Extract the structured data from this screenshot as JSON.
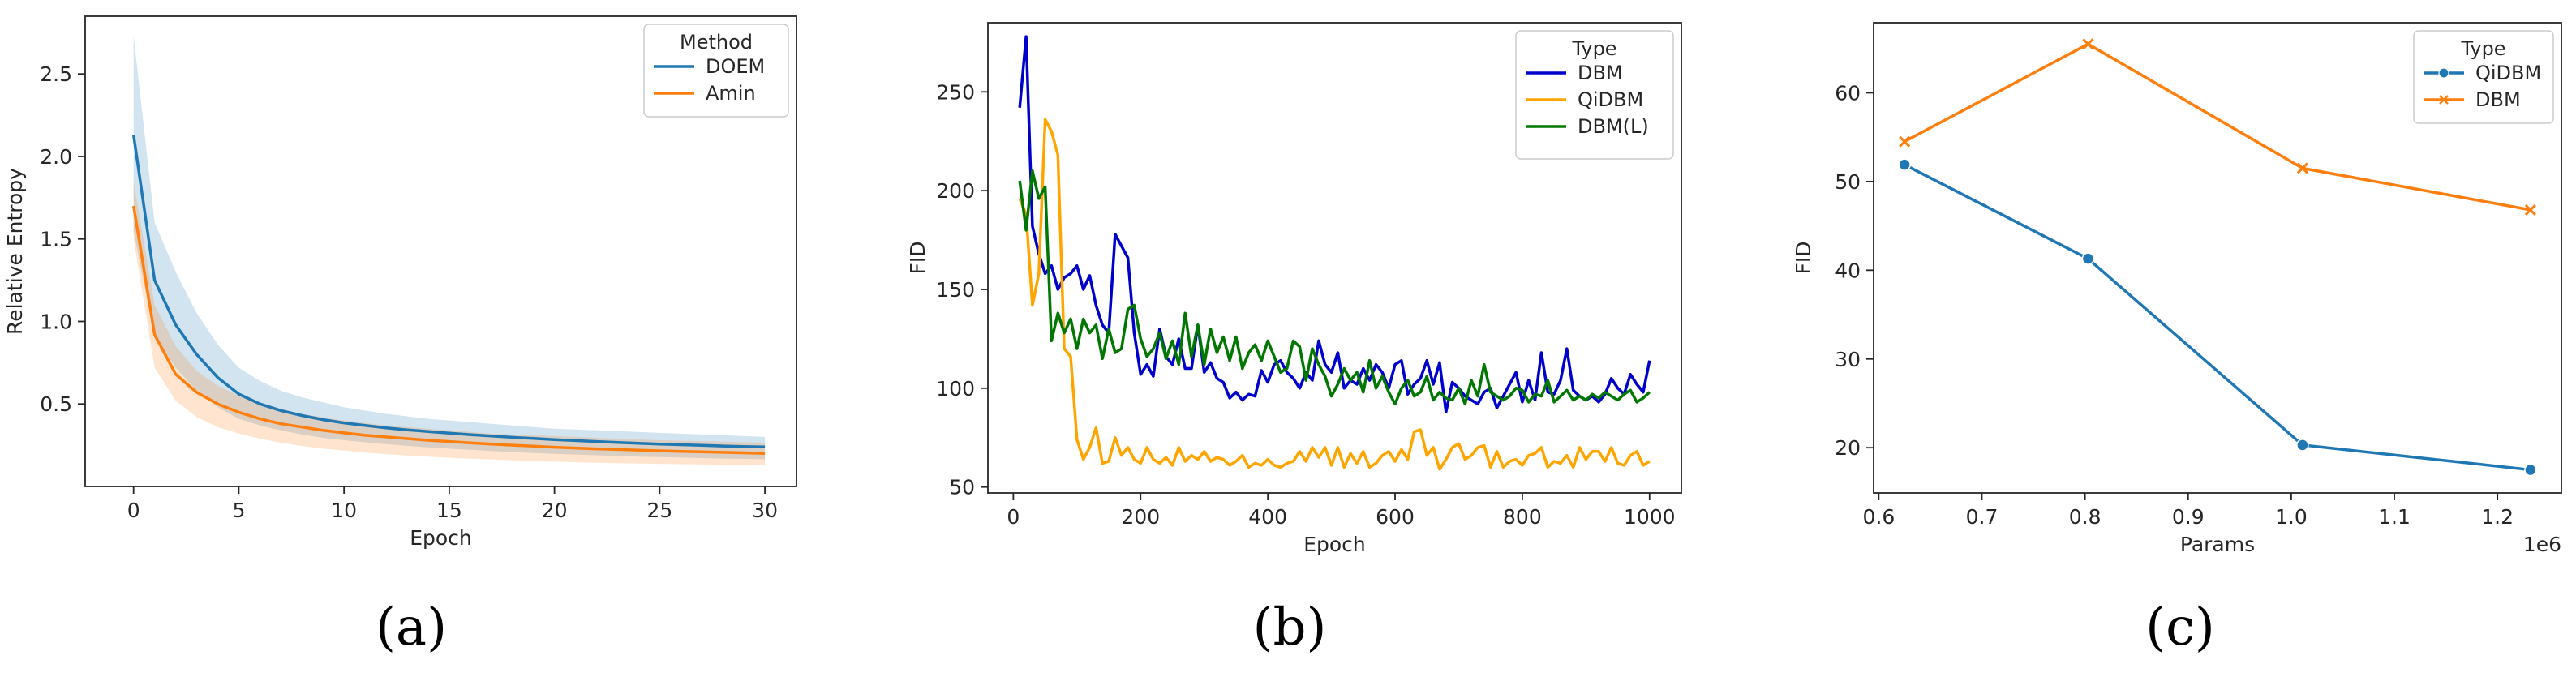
{
  "chart_data": [
    {
      "type": "line",
      "panel_label": "(a)",
      "xlabel": "Epoch",
      "ylabel": "Relative Entropy",
      "xlim": [
        -2.3,
        31.5
      ],
      "ylim": [
        0.0,
        2.85
      ],
      "xticks": [
        0,
        5,
        10,
        15,
        20,
        25,
        30
      ],
      "yticks": [
        0.5,
        1.0,
        1.5,
        2.0,
        2.5
      ],
      "grid": false,
      "legend": {
        "title": "Method",
        "position": "top-right"
      },
      "x": [
        0,
        1,
        2,
        3,
        4,
        5,
        6,
        7,
        8,
        9,
        10,
        11,
        12,
        13,
        14,
        15,
        16,
        17,
        18,
        19,
        20,
        21,
        22,
        23,
        24,
        25,
        26,
        27,
        28,
        29,
        30
      ],
      "series": [
        {
          "name": "DOEM",
          "color": "#1f77b4",
          "values": [
            2.13,
            1.25,
            0.98,
            0.8,
            0.66,
            0.56,
            0.5,
            0.46,
            0.43,
            0.405,
            0.385,
            0.37,
            0.355,
            0.343,
            0.333,
            0.323,
            0.314,
            0.306,
            0.298,
            0.291,
            0.284,
            0.278,
            0.272,
            0.267,
            0.262,
            0.257,
            0.253,
            0.249,
            0.245,
            0.242,
            0.24
          ],
          "band_upper": [
            2.73,
            1.6,
            1.3,
            1.05,
            0.86,
            0.72,
            0.64,
            0.58,
            0.54,
            0.51,
            0.48,
            0.46,
            0.44,
            0.425,
            0.41,
            0.4,
            0.39,
            0.38,
            0.37,
            0.36,
            0.35,
            0.345,
            0.34,
            0.335,
            0.33,
            0.325,
            0.32,
            0.315,
            0.31,
            0.305,
            0.3
          ],
          "band_lower": [
            1.55,
            0.9,
            0.72,
            0.58,
            0.48,
            0.41,
            0.37,
            0.34,
            0.315,
            0.295,
            0.28,
            0.268,
            0.256,
            0.246,
            0.237,
            0.229,
            0.222,
            0.215,
            0.209,
            0.203,
            0.198,
            0.193,
            0.189,
            0.185,
            0.181,
            0.178,
            0.175,
            0.172,
            0.169,
            0.167,
            0.165
          ]
        },
        {
          "name": "Amin",
          "color": "#ff7f0e",
          "values": [
            1.7,
            0.92,
            0.68,
            0.57,
            0.5,
            0.45,
            0.41,
            0.38,
            0.36,
            0.34,
            0.325,
            0.31,
            0.3,
            0.29,
            0.28,
            0.272,
            0.264,
            0.257,
            0.25,
            0.244,
            0.238,
            0.233,
            0.228,
            0.224,
            0.22,
            0.216,
            0.213,
            0.21,
            0.207,
            0.204,
            0.2
          ],
          "band_upper": [
            1.85,
            1.1,
            0.85,
            0.7,
            0.61,
            0.55,
            0.51,
            0.47,
            0.44,
            0.42,
            0.4,
            0.385,
            0.37,
            0.36,
            0.35,
            0.34,
            0.33,
            0.32,
            0.315,
            0.31,
            0.305,
            0.3,
            0.295,
            0.29,
            0.285,
            0.28,
            0.277,
            0.274,
            0.271,
            0.268,
            0.265
          ],
          "band_lower": [
            1.5,
            0.72,
            0.52,
            0.42,
            0.36,
            0.32,
            0.29,
            0.265,
            0.245,
            0.23,
            0.217,
            0.206,
            0.196,
            0.188,
            0.181,
            0.174,
            0.168,
            0.163,
            0.158,
            0.154,
            0.15,
            0.147,
            0.144,
            0.141,
            0.139,
            0.137,
            0.135,
            0.133,
            0.131,
            0.13,
            0.128
          ]
        }
      ]
    },
    {
      "type": "line",
      "panel_label": "(b)",
      "xlabel": "Epoch",
      "ylabel": "FID",
      "xlim": [
        -40,
        1050
      ],
      "ylim": [
        47,
        285
      ],
      "xticks": [
        0,
        200,
        400,
        600,
        800,
        1000
      ],
      "yticks": [
        50,
        100,
        150,
        200,
        250
      ],
      "grid": false,
      "legend": {
        "title": "Type",
        "position": "top-right"
      },
      "x": [
        10,
        20,
        30,
        40,
        50,
        60,
        70,
        80,
        90,
        100,
        110,
        120,
        130,
        140,
        150,
        160,
        170,
        180,
        190,
        200,
        210,
        220,
        230,
        240,
        250,
        260,
        270,
        280,
        290,
        300,
        310,
        320,
        330,
        340,
        350,
        360,
        370,
        380,
        390,
        400,
        410,
        420,
        430,
        440,
        450,
        460,
        470,
        480,
        490,
        500,
        510,
        520,
        530,
        540,
        550,
        560,
        570,
        580,
        590,
        600,
        610,
        620,
        630,
        640,
        650,
        660,
        670,
        680,
        690,
        700,
        710,
        720,
        730,
        740,
        750,
        760,
        770,
        780,
        790,
        800,
        810,
        820,
        830,
        840,
        850,
        860,
        870,
        880,
        890,
        900,
        910,
        920,
        930,
        940,
        950,
        960,
        970,
        980,
        990,
        1000
      ],
      "series": [
        {
          "name": "DBM",
          "color": "#0000cc",
          "values": [
            242,
            278,
            182,
            168,
            158,
            162,
            150,
            156,
            158,
            162,
            150,
            157,
            142,
            132,
            128,
            178,
            172,
            166,
            128,
            107,
            112,
            106,
            130,
            116,
            112,
            125,
            110,
            110,
            132,
            108,
            113,
            105,
            103,
            95,
            98,
            94,
            97,
            96,
            109,
            103,
            112,
            114,
            108,
            105,
            100,
            108,
            104,
            124,
            112,
            108,
            118,
            100,
            104,
            102,
            110,
            104,
            112,
            108,
            100,
            112,
            114,
            97,
            102,
            105,
            114,
            102,
            113,
            88,
            103,
            100,
            96,
            94,
            92,
            98,
            100,
            90,
            96,
            102,
            108,
            93,
            104,
            94,
            118,
            98,
            97,
            104,
            120,
            99,
            96,
            94,
            96,
            93,
            97,
            105,
            100,
            97,
            107,
            102,
            98,
            114
          ]
        },
        {
          "name": "QiDBM",
          "color": "#ffa500",
          "values": [
            196,
            188,
            142,
            158,
            236,
            230,
            218,
            120,
            116,
            74,
            64,
            70,
            80,
            62,
            63,
            75,
            66,
            70,
            64,
            62,
            70,
            64,
            62,
            65,
            61,
            70,
            63,
            66,
            64,
            68,
            63,
            65,
            64,
            61,
            63,
            66,
            60,
            62,
            61,
            64,
            61,
            60,
            62,
            63,
            68,
            63,
            70,
            65,
            70,
            61,
            70,
            60,
            67,
            62,
            68,
            60,
            62,
            66,
            68,
            63,
            69,
            64,
            78,
            79,
            66,
            70,
            59,
            64,
            70,
            72,
            64,
            66,
            70,
            71,
            60,
            68,
            60,
            63,
            64,
            61,
            66,
            67,
            70,
            60,
            63,
            62,
            66,
            60,
            70,
            64,
            68,
            68,
            63,
            70,
            62,
            61,
            66,
            68,
            61,
            63
          ]
        },
        {
          "name": "DBM(L)",
          "color": "#007700",
          "values": [
            205,
            180,
            210,
            196,
            202,
            124,
            138,
            128,
            135,
            120,
            135,
            128,
            132,
            115,
            130,
            118,
            120,
            140,
            142,
            125,
            116,
            120,
            128,
            115,
            124,
            112,
            138,
            116,
            132,
            112,
            130,
            118,
            126,
            114,
            126,
            110,
            118,
            122,
            114,
            124,
            116,
            108,
            110,
            124,
            121,
            104,
            120,
            112,
            106,
            96,
            102,
            110,
            104,
            108,
            98,
            114,
            100,
            106,
            98,
            92,
            100,
            104,
            96,
            98,
            106,
            94,
            98,
            95,
            94,
            100,
            92,
            104,
            96,
            112,
            98,
            96,
            94,
            96,
            100,
            99,
            93,
            97,
            96,
            104,
            93,
            96,
            99,
            94,
            96,
            94,
            97,
            95,
            98,
            96,
            94,
            97,
            99,
            93,
            95,
            98
          ]
        }
      ]
    },
    {
      "type": "line",
      "panel_label": "(c)",
      "xlabel": "Params",
      "ylabel": "FID",
      "x_offset_label": "1e6",
      "xlim": [
        0.595,
        1.262
      ],
      "ylim": [
        14.9,
        67.9
      ],
      "xticks": [
        0.6,
        0.7,
        0.8,
        0.9,
        1.0,
        1.1,
        1.2
      ],
      "yticks": [
        20,
        30,
        40,
        50,
        60
      ],
      "grid": false,
      "legend": {
        "title": "Type",
        "position": "top-right"
      },
      "series": [
        {
          "name": "QiDBM",
          "color": "#1f77b4",
          "marker": "circle",
          "x": [
            0.625,
            0.803,
            1.011,
            1.232
          ],
          "values": [
            51.9,
            41.3,
            20.3,
            17.5
          ]
        },
        {
          "name": "DBM",
          "color": "#ff7f0e",
          "marker": "x",
          "x": [
            0.625,
            0.803,
            1.011,
            1.232
          ],
          "values": [
            54.5,
            65.5,
            51.5,
            46.8
          ]
        }
      ]
    }
  ]
}
